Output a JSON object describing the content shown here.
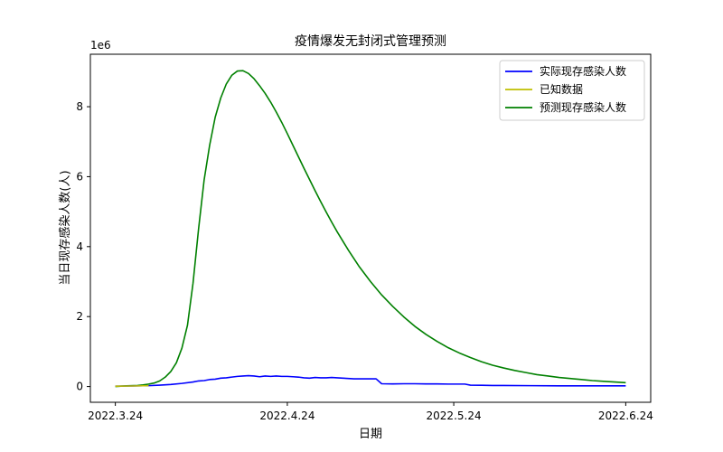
{
  "chart_data": {
    "type": "line",
    "title": "疫情爆发无封闭式管理预测",
    "xlabel": "日期",
    "ylabel": "当日现存感染人数(人)",
    "y_multiplier_label": "1e6",
    "y_scale": 1000000,
    "xlim": [
      -4.5,
      96.5
    ],
    "ylim": [
      -0.45,
      9.5
    ],
    "x_ticks": [
      {
        "x": 0,
        "label": "2022.3.24"
      },
      {
        "x": 31,
        "label": "2022.4.24"
      },
      {
        "x": 61,
        "label": "2022.5.24"
      },
      {
        "x": 92,
        "label": "2022.6.24"
      }
    ],
    "y_ticks": [
      0,
      2,
      4,
      6,
      8
    ],
    "legend": {
      "placement": "top-right",
      "entries": [
        {
          "label": "实际现存感染人数",
          "color": "#0000ff"
        },
        {
          "label": "已知数据",
          "color": "#bfbf00"
        },
        {
          "label": "预测现存感染人数",
          "color": "#008000"
        }
      ]
    },
    "series": [
      {
        "name": "实际现存感染人数",
        "color": "#0000ff",
        "points": [
          [
            0,
            0.01
          ],
          [
            3,
            0.015
          ],
          [
            6,
            0.025
          ],
          [
            8,
            0.04
          ],
          [
            10,
            0.06
          ],
          [
            12,
            0.09
          ],
          [
            14,
            0.13
          ],
          [
            15,
            0.16
          ],
          [
            16,
            0.17
          ],
          [
            17,
            0.2
          ],
          [
            18,
            0.21
          ],
          [
            19,
            0.24
          ],
          [
            20,
            0.25
          ],
          [
            21,
            0.27
          ],
          [
            22,
            0.29
          ],
          [
            23,
            0.3
          ],
          [
            24,
            0.31
          ],
          [
            25,
            0.3
          ],
          [
            26,
            0.28
          ],
          [
            27,
            0.3
          ],
          [
            28,
            0.29
          ],
          [
            29,
            0.3
          ],
          [
            30,
            0.29
          ],
          [
            31,
            0.29
          ],
          [
            32,
            0.28
          ],
          [
            33,
            0.27
          ],
          [
            34,
            0.25
          ],
          [
            35,
            0.24
          ],
          [
            36,
            0.26
          ],
          [
            37,
            0.25
          ],
          [
            38,
            0.25
          ],
          [
            39,
            0.26
          ],
          [
            40,
            0.25
          ],
          [
            41,
            0.24
          ],
          [
            42,
            0.23
          ],
          [
            43,
            0.22
          ],
          [
            44,
            0.22
          ],
          [
            45,
            0.22
          ],
          [
            46,
            0.22
          ],
          [
            47,
            0.22
          ],
          [
            48,
            0.08
          ],
          [
            50,
            0.075
          ],
          [
            52,
            0.08
          ],
          [
            54,
            0.08
          ],
          [
            56,
            0.075
          ],
          [
            58,
            0.075
          ],
          [
            60,
            0.07
          ],
          [
            62,
            0.07
          ],
          [
            63,
            0.07
          ],
          [
            64,
            0.04
          ],
          [
            66,
            0.035
          ],
          [
            68,
            0.03
          ],
          [
            70,
            0.03
          ],
          [
            75,
            0.025
          ],
          [
            80,
            0.02
          ],
          [
            85,
            0.02
          ],
          [
            92,
            0.02
          ]
        ]
      },
      {
        "name": "已知数据",
        "color": "#bfbf00",
        "points": [
          [
            0,
            0.01
          ],
          [
            3,
            0.015
          ],
          [
            6,
            0.025
          ]
        ]
      },
      {
        "name": "预测现存感染人数",
        "color": "#008000",
        "points": [
          [
            0,
            0.0
          ],
          [
            2,
            0.02
          ],
          [
            4,
            0.03
          ],
          [
            5,
            0.045
          ],
          [
            6,
            0.07
          ],
          [
            7,
            0.1
          ],
          [
            8,
            0.16
          ],
          [
            9,
            0.27
          ],
          [
            10,
            0.43
          ],
          [
            11,
            0.68
          ],
          [
            12,
            1.1
          ],
          [
            13,
            1.75
          ],
          [
            14,
            2.95
          ],
          [
            15,
            4.5
          ],
          [
            16,
            5.9
          ],
          [
            17,
            6.9
          ],
          [
            18,
            7.7
          ],
          [
            19,
            8.25
          ],
          [
            20,
            8.65
          ],
          [
            21,
            8.9
          ],
          [
            22,
            9.02
          ],
          [
            23,
            9.03
          ],
          [
            24,
            8.95
          ],
          [
            25,
            8.8
          ],
          [
            26,
            8.6
          ],
          [
            27,
            8.38
          ],
          [
            28,
            8.13
          ],
          [
            29,
            7.85
          ],
          [
            30,
            7.55
          ],
          [
            31,
            7.23
          ],
          [
            32,
            6.9
          ],
          [
            33,
            6.57
          ],
          [
            34,
            6.24
          ],
          [
            35,
            5.92
          ],
          [
            36,
            5.6
          ],
          [
            37,
            5.29
          ],
          [
            38,
            4.99
          ],
          [
            39,
            4.7
          ],
          [
            40,
            4.42
          ],
          [
            42,
            3.9
          ],
          [
            44,
            3.42
          ],
          [
            46,
            3.0
          ],
          [
            48,
            2.62
          ],
          [
            50,
            2.29
          ],
          [
            52,
            1.99
          ],
          [
            54,
            1.72
          ],
          [
            56,
            1.49
          ],
          [
            58,
            1.29
          ],
          [
            60,
            1.11
          ],
          [
            62,
            0.96
          ],
          [
            64,
            0.83
          ],
          [
            66,
            0.71
          ],
          [
            68,
            0.61
          ],
          [
            70,
            0.53
          ],
          [
            72,
            0.46
          ],
          [
            74,
            0.4
          ],
          [
            76,
            0.34
          ],
          [
            78,
            0.3
          ],
          [
            80,
            0.26
          ],
          [
            82,
            0.23
          ],
          [
            84,
            0.2
          ],
          [
            86,
            0.17
          ],
          [
            88,
            0.15
          ],
          [
            90,
            0.13
          ],
          [
            92,
            0.11
          ]
        ]
      }
    ]
  }
}
